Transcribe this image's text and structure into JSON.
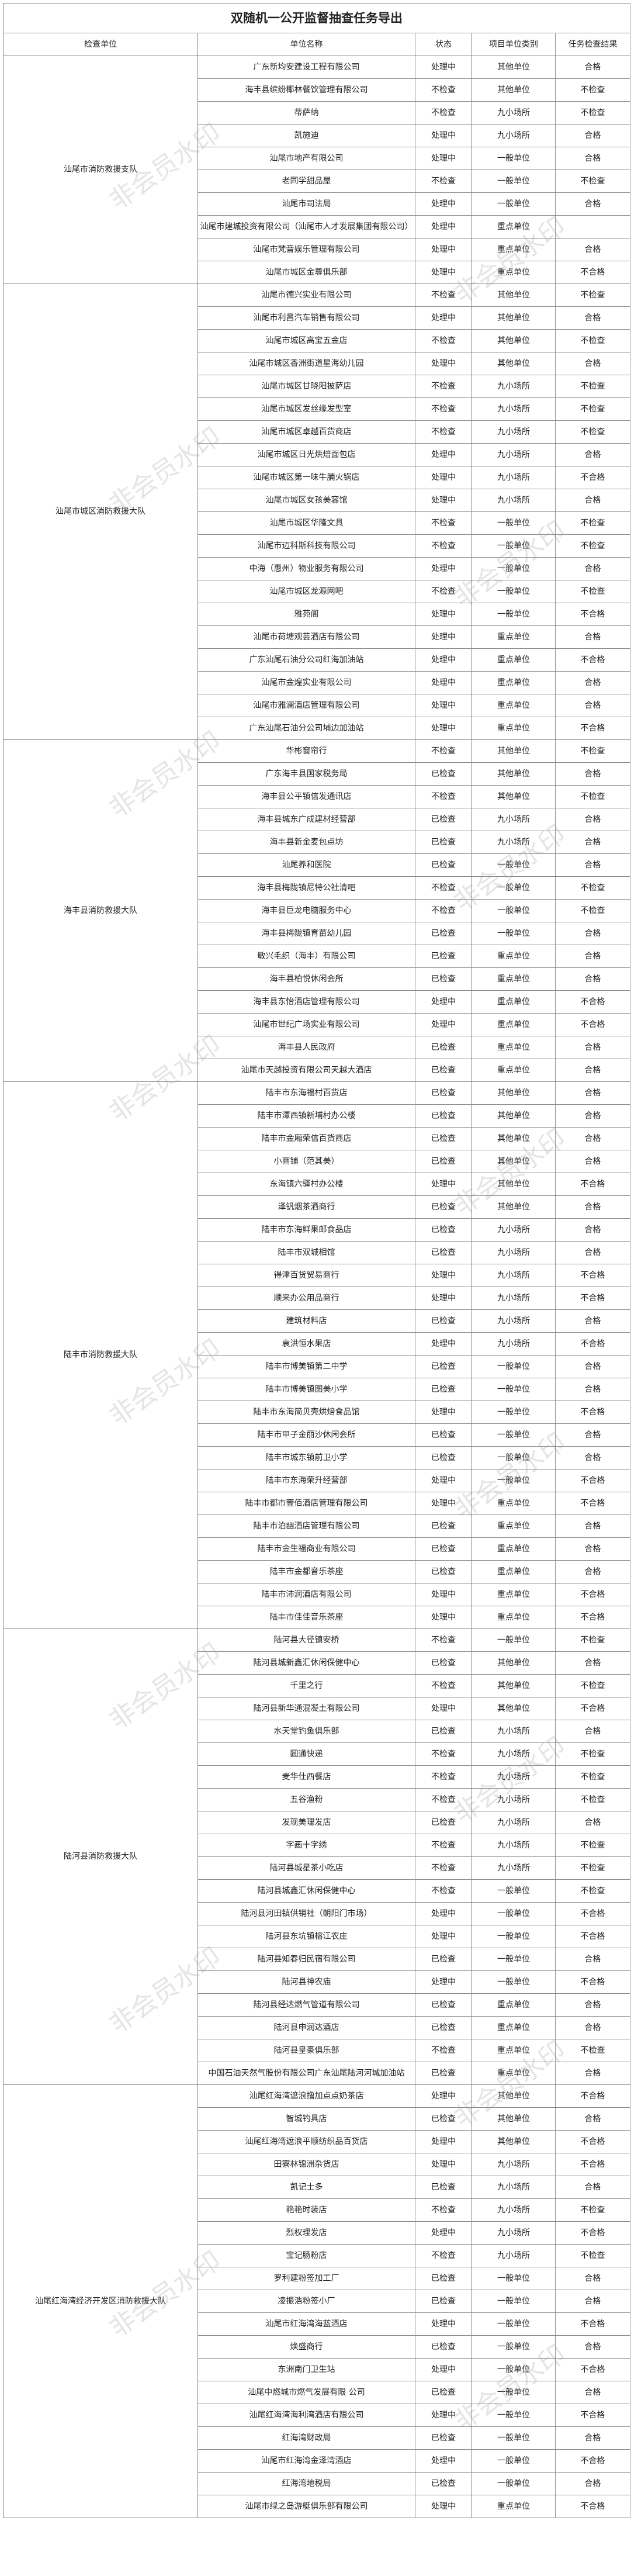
{
  "title": "双随机一公开监督抽查任务导出",
  "headers": [
    "检查单位",
    "单位名称",
    "状态",
    "项目单位类别",
    "任务检查结果"
  ],
  "watermark": "非会员水印",
  "groups": [
    {
      "unit": "汕尾市消防救援支队",
      "rows": [
        [
          "广东新均安建设工程有限公司",
          "处理中",
          "其他单位",
          "合格"
        ],
        [
          "海丰县缤纷椰林餐饮管理有限公司",
          "不检查",
          "其他单位",
          "不检查"
        ],
        [
          "蒂萨纳",
          "不检查",
          "九小场所",
          "不检查"
        ],
        [
          "凯施迪",
          "处理中",
          "九小场所",
          "合格"
        ],
        [
          "汕尾市地产有限公司",
          "处理中",
          "一般单位",
          "合格"
        ],
        [
          "老同学甜品屋",
          "不检查",
          "一般单位",
          "不检查"
        ],
        [
          "汕尾市司法局",
          "处理中",
          "一般单位",
          "合格"
        ],
        [
          "汕尾市建城投资有限公司（汕尾市人才发展集团有限公司）",
          "处理中",
          "重点单位",
          ""
        ],
        [
          "汕尾市梵音娱乐管理有限公司",
          "处理中",
          "重点单位",
          "合格"
        ],
        [
          "汕尾市城区金尊俱乐部",
          "处理中",
          "重点单位",
          "不合格"
        ]
      ]
    },
    {
      "unit": "汕尾市城区消防救援大队",
      "rows": [
        [
          "汕尾市德兴实业有限公司",
          "不检查",
          "其他单位",
          "不检查"
        ],
        [
          "汕尾市利昌汽车销售有限公司",
          "处理中",
          "其他单位",
          "合格"
        ],
        [
          "汕尾市城区高宝五金店",
          "不检查",
          "其他单位",
          "不检查"
        ],
        [
          "汕尾市城区香洲街道星海幼儿园",
          "处理中",
          "其他单位",
          "合格"
        ],
        [
          "汕尾市城区甘晓阳披萨店",
          "不检查",
          "九小场所",
          "不检查"
        ],
        [
          "汕尾市城区发丝缘发型室",
          "不检查",
          "九小场所",
          "不检查"
        ],
        [
          "汕尾市城区卓越百货商店",
          "不检查",
          "九小场所",
          "不检查"
        ],
        [
          "汕尾市城区日光烘焙面包店",
          "处理中",
          "九小场所",
          "合格"
        ],
        [
          "汕尾市城区第一味牛腩火锅店",
          "处理中",
          "九小场所",
          "不合格"
        ],
        [
          "汕尾市城区女孩美容馆",
          "处理中",
          "九小场所",
          "合格"
        ],
        [
          "汕尾市城区华隆文具",
          "不检查",
          "一般单位",
          "不检查"
        ],
        [
          "汕尾市迈科斯科技有限公司",
          "不检查",
          "一般单位",
          "不检查"
        ],
        [
          "中海（惠州）物业服务有限公司",
          "处理中",
          "一般单位",
          "合格"
        ],
        [
          "汕尾市城区龙源网吧",
          "不检查",
          "一般单位",
          "不检查"
        ],
        [
          "雅苑阁",
          "处理中",
          "一般单位",
          "不合格"
        ],
        [
          "汕尾市荷塘观芸酒店有限公司",
          "处理中",
          "重点单位",
          "合格"
        ],
        [
          "广东汕尾石油分公司红海加油站",
          "处理中",
          "重点单位",
          "不合格"
        ],
        [
          "汕尾市金煌实业有限公司",
          "处理中",
          "重点单位",
          "合格"
        ],
        [
          "汕尾市雅澜酒店管理有限公司",
          "处理中",
          "重点单位",
          "合格"
        ],
        [
          "广东汕尾石油分公司埔边加油站",
          "处理中",
          "重点单位",
          "不合格"
        ]
      ]
    },
    {
      "unit": "海丰县消防救援大队",
      "rows": [
        [
          "华彬窗帘行",
          "不检查",
          "其他单位",
          "不检查"
        ],
        [
          "广东海丰县国家税务局",
          "已检查",
          "其他单位",
          "合格"
        ],
        [
          "海丰县公平镇信发通讯店",
          "不检查",
          "其他单位",
          "不检查"
        ],
        [
          "海丰县城东广成建材经营部",
          "已检查",
          "九小场所",
          "合格"
        ],
        [
          "海丰县新金麦包点坊",
          "已检查",
          "九小场所",
          "合格"
        ],
        [
          "汕尾养和医院",
          "已检查",
          "一般单位",
          "合格"
        ],
        [
          "海丰县梅陇镇尼特公社清吧",
          "不检查",
          "一般单位",
          "不检查"
        ],
        [
          "海丰县巨龙电脑服务中心",
          "不检查",
          "一般单位",
          "不检查"
        ],
        [
          "海丰县梅陇镇育苗幼儿园",
          "已检查",
          "一般单位",
          "合格"
        ],
        [
          "敏兴毛织（海丰）有限公司",
          "已检查",
          "重点单位",
          "合格"
        ],
        [
          "海丰县柏悦休闲会所",
          "已检查",
          "重点单位",
          "合格"
        ],
        [
          "海丰县东怡酒店管理有限公司",
          "处理中",
          "重点单位",
          "不合格"
        ],
        [
          "汕尾市世纪广场实业有限公司",
          "处理中",
          "重点单位",
          "不合格"
        ],
        [
          "海丰县人民政府",
          "已检查",
          "重点单位",
          "合格"
        ],
        [
          "汕尾市天越投资有限公司天越大酒店",
          "已检查",
          "重点单位",
          "合格"
        ]
      ]
    },
    {
      "unit": "陆丰市消防救援大队",
      "rows": [
        [
          "陆丰市东海福村百货店",
          "已检查",
          "其他单位",
          "合格"
        ],
        [
          "陆丰市潭西镇新埔村办公楼",
          "已检查",
          "其他单位",
          "合格"
        ],
        [
          "陆丰市金厢荣信百货商店",
          "已检查",
          "其他单位",
          "合格"
        ],
        [
          "小商铺（范其美）",
          "已检查",
          "其他单位",
          "合格"
        ],
        [
          "东海镇六驿村办公楼",
          "处理中",
          "其他单位",
          "不合格"
        ],
        [
          "泽钒烟茶酒商行",
          "已检查",
          "其他单位",
          "合格"
        ],
        [
          "陆丰市东海鲜果邮食品店",
          "已检查",
          "九小场所",
          "合格"
        ],
        [
          "陆丰市双城相馆",
          "已检查",
          "九小场所",
          "合格"
        ],
        [
          "得津百货贸易商行",
          "处理中",
          "九小场所",
          "不合格"
        ],
        [
          "顺来办公用品商行",
          "处理中",
          "九小场所",
          "不合格"
        ],
        [
          "建筑材料店",
          "已检查",
          "九小场所",
          "合格"
        ],
        [
          "袁洪恒水果店",
          "处理中",
          "九小场所",
          "不合格"
        ],
        [
          "陆丰市博美镇第二中学",
          "已检查",
          "一般单位",
          "合格"
        ],
        [
          "陆丰市博美镇图美小学",
          "已检查",
          "一般单位",
          "合格"
        ],
        [
          "陆丰市东海简贝壳烘焙食品馆",
          "处理中",
          "一般单位",
          "不合格"
        ],
        [
          "陆丰市甲子金丽沙休闲会所",
          "已检查",
          "一般单位",
          "合格"
        ],
        [
          "陆丰市城东镇前卫小学",
          "已检查",
          "一般单位",
          "合格"
        ],
        [
          "陆丰市东海荣升经营部",
          "处理中",
          "一般单位",
          "不合格"
        ],
        [
          "陆丰市都市壹佰酒店管理有限公司",
          "处理中",
          "重点单位",
          "不合格"
        ],
        [
          "陆丰市泊幽酒店管理有限公司",
          "已检查",
          "重点单位",
          "合格"
        ],
        [
          "陆丰市金生福商业有限公司",
          "已检查",
          "重点单位",
          "合格"
        ],
        [
          "陆丰市金都音乐茶座",
          "已检查",
          "重点单位",
          "合格"
        ],
        [
          "陆丰市沛润酒店有限公司",
          "处理中",
          "重点单位",
          "不合格"
        ],
        [
          "陆丰市佳佳音乐茶座",
          "处理中",
          "重点单位",
          "不合格"
        ]
      ]
    },
    {
      "unit": "陆河县消防救援大队",
      "rows": [
        [
          "陆河县大径镇安桥",
          "不检查",
          "一般单位",
          "不检查"
        ],
        [
          "陆河县城新鑫汇休闲保健中心",
          "已检查",
          "其他单位",
          "合格"
        ],
        [
          "千里之行",
          "不检查",
          "其他单位",
          "不检查"
        ],
        [
          "陆河县新华通混凝土有限公司",
          "处理中",
          "其他单位",
          "不合格"
        ],
        [
          "水天堂钓鱼俱乐部",
          "已检查",
          "九小场所",
          "合格"
        ],
        [
          "圆通快递",
          "不检查",
          "九小场所",
          "不检查"
        ],
        [
          "麦华仕西餐店",
          "不检查",
          "九小场所",
          "不检查"
        ],
        [
          "五谷渔粉",
          "不检查",
          "九小场所",
          "不检查"
        ],
        [
          "发现美理发店",
          "已检查",
          "九小场所",
          "合格"
        ],
        [
          "字画十字绣",
          "不检查",
          "九小场所",
          "不检查"
        ],
        [
          "陆河县城星茶小吃店",
          "不检查",
          "九小场所",
          "不检查"
        ],
        [
          "陆河县城鑫汇休闲保健中心",
          "不检查",
          "一般单位",
          "不检查"
        ],
        [
          "陆河县河田镇供销社（朝阳门市场）",
          "处理中",
          "一般单位",
          "不合格"
        ],
        [
          "陆河县东坑镇榕江农庄",
          "处理中",
          "一般单位",
          "不合格"
        ],
        [
          "陆河县知春归民宿有限公司",
          "已检查",
          "一般单位",
          "合格"
        ],
        [
          "陆河县神农庙",
          "处理中",
          "一般单位",
          "不合格"
        ],
        [
          "陆河县经达燃气管道有限公司",
          "已检查",
          "重点单位",
          "合格"
        ],
        [
          "陆河县申润达酒店",
          "已检查",
          "重点单位",
          "合格"
        ],
        [
          "陆河县皇豪俱乐部",
          "不检查",
          "重点单位",
          "不检查"
        ],
        [
          "中国石油天然气股份有限公司广东汕尾陆河河城加油站",
          "已检查",
          "重点单位",
          "合格"
        ]
      ]
    },
    {
      "unit": "汕尾红海湾经济开发区消防救援大队",
      "rows": [
        [
          "汕尾红海湾遮浪撸加点点奶茶店",
          "处理中",
          "其他单位",
          "不合格"
        ],
        [
          "智城钓具店",
          "已检查",
          "其他单位",
          "合格"
        ],
        [
          "汕尾红海湾遮浪平顺纺织品百货店",
          "处理中",
          "其他单位",
          "不合格"
        ],
        [
          "田寮林锦洲杂货店",
          "处理中",
          "九小场所",
          "不合格"
        ],
        [
          "凯记士多",
          "已检查",
          "九小场所",
          "合格"
        ],
        [
          "艳艳时装店",
          "不检查",
          "九小场所",
          "不检查"
        ],
        [
          "烈权理发店",
          "处理中",
          "九小场所",
          "不合格"
        ],
        [
          "宝记肠粉店",
          "不检查",
          "九小场所",
          "不检查"
        ],
        [
          "罗利建粉签加工厂",
          "已检查",
          "一般单位",
          "合格"
        ],
        [
          "凌振浩粉签小厂",
          "已检查",
          "一般单位",
          "合格"
        ],
        [
          "汕尾市红海湾海蓝酒店",
          "处理中",
          "一般单位",
          "不合格"
        ],
        [
          "焕盛商行",
          "已检查",
          "一般单位",
          "合格"
        ],
        [
          "东洲南门卫生站",
          "处理中",
          "一般单位",
          "不合格"
        ],
        [
          "汕尾中燃城市燃气发展有限 公司",
          "已检查",
          "一般单位",
          "合格"
        ],
        [
          "汕尾红海湾海利湾酒店有限公司",
          "处理中",
          "一般单位",
          "不合格"
        ],
        [
          "红海湾财政局",
          "已检查",
          "一般单位",
          "合格"
        ],
        [
          "汕尾市红海湾金泽湾酒店",
          "处理中",
          "一般单位",
          "不合格"
        ],
        [
          "红海湾地税局",
          "已检查",
          "一般单位",
          "合格"
        ],
        [
          "汕尾市绿之岛游艇俱乐部有限公司",
          "处理中",
          "重点单位",
          "不合格"
        ]
      ]
    }
  ]
}
